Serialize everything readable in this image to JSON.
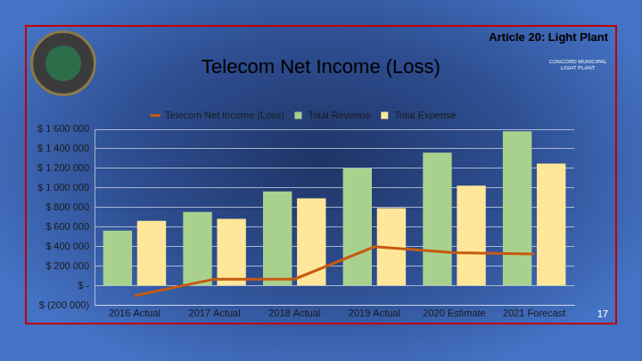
{
  "chart_data": {
    "type": "bar",
    "title": "Telecom Net Income (Loss)",
    "annotations": [
      "Article 20: Light Plant",
      "CONCORD MUNICIPAL LIGHT PLANT",
      "17"
    ],
    "categories": [
      "2016 Actual",
      "2017 Actual",
      "2018 Actual",
      "2019 Actual",
      "2020 Estimate",
      "2021 Forecast"
    ],
    "series": [
      {
        "name": "Total Revenue",
        "color": "#a9d18e",
        "values": [
          565000,
          755000,
          965000,
          1200000,
          1360000,
          1580000
        ]
      },
      {
        "name": "Total Expense",
        "color": "#ffe699",
        "values": [
          665000,
          685000,
          895000,
          795000,
          1025000,
          1250000
        ]
      },
      {
        "name": "Telecom Net Income (Loss)",
        "color": "#c55a11",
        "type": "line",
        "values": [
          -100000,
          70000,
          70000,
          400000,
          340000,
          325000
        ]
      }
    ],
    "ylim": [
      -200000,
      1600000
    ],
    "yticks": [
      {
        "value": -200000,
        "label": "$ (200 000)"
      },
      {
        "value": 0,
        "label": "$ -"
      },
      {
        "value": 200000,
        "label": "$ 200 000"
      },
      {
        "value": 400000,
        "label": "$ 400 000"
      },
      {
        "value": 600000,
        "label": "$ 600 000"
      },
      {
        "value": 800000,
        "label": "$ 800 000"
      },
      {
        "value": 1000000,
        "label": "$ 1 000 000"
      },
      {
        "value": 1200000,
        "label": "$ 1 200 000"
      },
      {
        "value": 1400000,
        "label": "$ 1 400 000"
      },
      {
        "value": 1600000,
        "label": "$ 1 600 000"
      }
    ],
    "grid": true,
    "legend": "top"
  }
}
